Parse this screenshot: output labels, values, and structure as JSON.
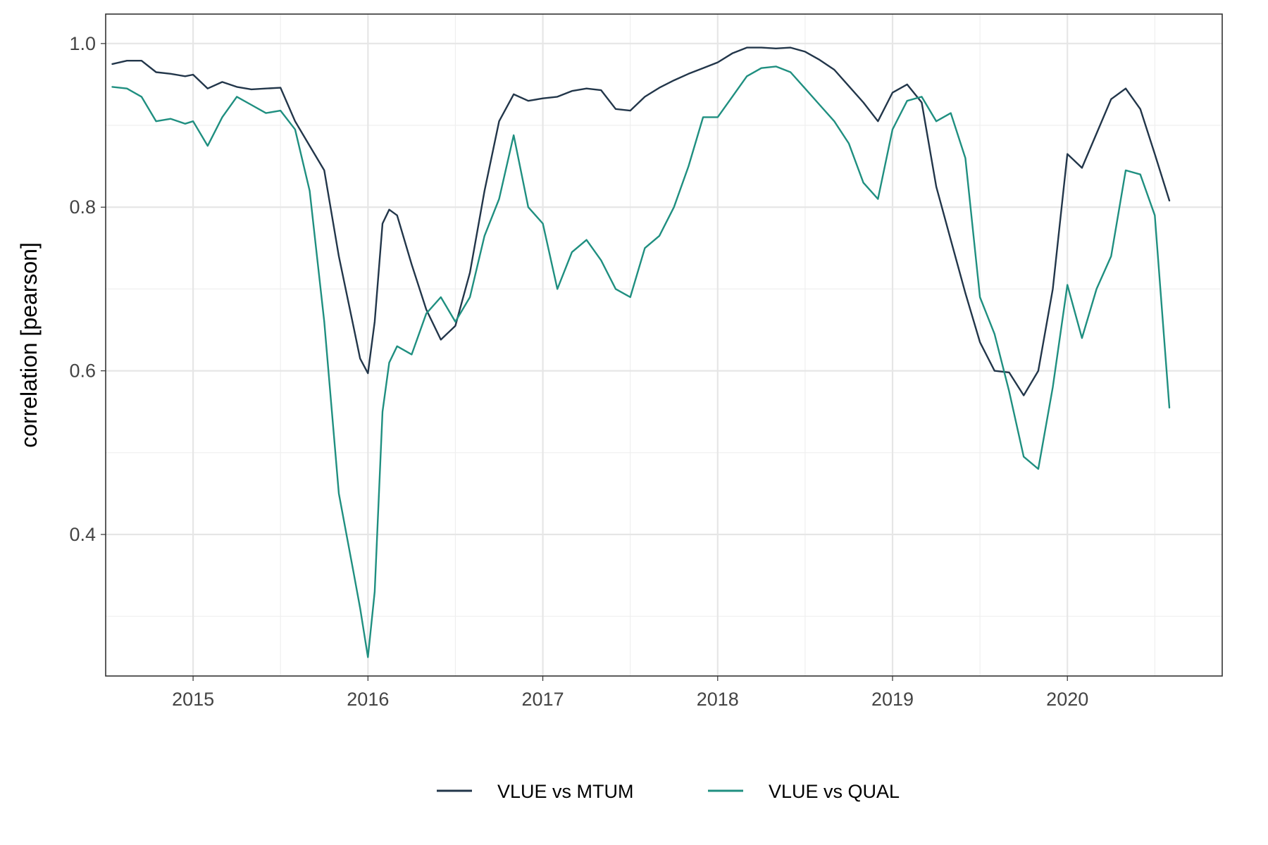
{
  "chart_data": {
    "type": "line",
    "title": "",
    "xlabel": "",
    "ylabel": "correlation [pearson]",
    "x_ticks": [
      "2015",
      "2016",
      "2017",
      "2018",
      "2019",
      "2020"
    ],
    "y_ticks": [
      "0.4",
      "0.6",
      "0.8",
      "1.0"
    ],
    "xlim": [
      "2014-07-01",
      "2020-11-20"
    ],
    "ylim": [
      0.227,
      1.036
    ],
    "grid": true,
    "legend_position": "bottom",
    "series": [
      {
        "name": "VLUE vs MTUM",
        "color": "#22364a",
        "points": [
          [
            "2014-07-15",
            0.975
          ],
          [
            "2014-08-15",
            0.979
          ],
          [
            "2014-09-15",
            0.979
          ],
          [
            "2014-10-15",
            0.965
          ],
          [
            "2014-11-15",
            0.963
          ],
          [
            "2014-12-15",
            0.96
          ],
          [
            "2015-01-01",
            0.962
          ],
          [
            "2015-02-01",
            0.945
          ],
          [
            "2015-03-01",
            0.953
          ],
          [
            "2015-04-01",
            0.947
          ],
          [
            "2015-05-01",
            0.944
          ],
          [
            "2015-06-01",
            0.945
          ],
          [
            "2015-07-01",
            0.946
          ],
          [
            "2015-08-01",
            0.905
          ],
          [
            "2015-09-01",
            0.875
          ],
          [
            "2015-10-01",
            0.845
          ],
          [
            "2015-11-01",
            0.74
          ],
          [
            "2015-12-01",
            0.655
          ],
          [
            "2015-12-15",
            0.615
          ],
          [
            "2016-01-01",
            0.597
          ],
          [
            "2016-01-15",
            0.66
          ],
          [
            "2016-02-01",
            0.78
          ],
          [
            "2016-02-15",
            0.797
          ],
          [
            "2016-03-01",
            0.79
          ],
          [
            "2016-04-01",
            0.73
          ],
          [
            "2016-05-01",
            0.675
          ],
          [
            "2016-06-01",
            0.638
          ],
          [
            "2016-07-01",
            0.655
          ],
          [
            "2016-08-01",
            0.72
          ],
          [
            "2016-09-01",
            0.82
          ],
          [
            "2016-10-01",
            0.905
          ],
          [
            "2016-11-01",
            0.938
          ],
          [
            "2016-12-01",
            0.93
          ],
          [
            "2017-01-01",
            0.933
          ],
          [
            "2017-02-01",
            0.935
          ],
          [
            "2017-03-01",
            0.942
          ],
          [
            "2017-04-01",
            0.945
          ],
          [
            "2017-05-01",
            0.943
          ],
          [
            "2017-06-01",
            0.92
          ],
          [
            "2017-07-01",
            0.918
          ],
          [
            "2017-08-01",
            0.935
          ],
          [
            "2017-09-01",
            0.946
          ],
          [
            "2017-10-01",
            0.955
          ],
          [
            "2017-11-01",
            0.963
          ],
          [
            "2017-12-01",
            0.97
          ],
          [
            "2018-01-01",
            0.977
          ],
          [
            "2018-02-01",
            0.988
          ],
          [
            "2018-03-01",
            0.995
          ],
          [
            "2018-04-01",
            0.995
          ],
          [
            "2018-05-01",
            0.994
          ],
          [
            "2018-06-01",
            0.995
          ],
          [
            "2018-07-01",
            0.99
          ],
          [
            "2018-08-01",
            0.98
          ],
          [
            "2018-09-01",
            0.968
          ],
          [
            "2018-10-01",
            0.948
          ],
          [
            "2018-11-01",
            0.928
          ],
          [
            "2018-12-01",
            0.905
          ],
          [
            "2019-01-01",
            0.94
          ],
          [
            "2019-02-01",
            0.95
          ],
          [
            "2019-03-01",
            0.928
          ],
          [
            "2019-04-01",
            0.825
          ],
          [
            "2019-05-01",
            0.76
          ],
          [
            "2019-06-01",
            0.695
          ],
          [
            "2019-07-01",
            0.635
          ],
          [
            "2019-08-01",
            0.6
          ],
          [
            "2019-09-01",
            0.598
          ],
          [
            "2019-10-01",
            0.57
          ],
          [
            "2019-11-01",
            0.6
          ],
          [
            "2019-12-01",
            0.7
          ],
          [
            "2020-01-01",
            0.865
          ],
          [
            "2020-02-01",
            0.848
          ],
          [
            "2020-03-01",
            0.89
          ],
          [
            "2020-04-01",
            0.932
          ],
          [
            "2020-05-01",
            0.945
          ],
          [
            "2020-06-01",
            0.92
          ],
          [
            "2020-07-01",
            0.865
          ],
          [
            "2020-08-01",
            0.808
          ]
        ]
      },
      {
        "name": "VLUE vs QUAL",
        "color": "#1f8f80",
        "points": [
          [
            "2014-07-15",
            0.947
          ],
          [
            "2014-08-15",
            0.945
          ],
          [
            "2014-09-15",
            0.935
          ],
          [
            "2014-10-15",
            0.905
          ],
          [
            "2014-11-15",
            0.908
          ],
          [
            "2014-12-15",
            0.902
          ],
          [
            "2015-01-01",
            0.905
          ],
          [
            "2015-02-01",
            0.875
          ],
          [
            "2015-03-01",
            0.91
          ],
          [
            "2015-04-01",
            0.935
          ],
          [
            "2015-05-01",
            0.925
          ],
          [
            "2015-06-01",
            0.915
          ],
          [
            "2015-07-01",
            0.918
          ],
          [
            "2015-08-01",
            0.895
          ],
          [
            "2015-09-01",
            0.82
          ],
          [
            "2015-10-01",
            0.66
          ],
          [
            "2015-11-01",
            0.45
          ],
          [
            "2015-12-01",
            0.355
          ],
          [
            "2015-12-15",
            0.31
          ],
          [
            "2016-01-01",
            0.25
          ],
          [
            "2016-01-15",
            0.33
          ],
          [
            "2016-02-01",
            0.55
          ],
          [
            "2016-02-15",
            0.61
          ],
          [
            "2016-03-01",
            0.63
          ],
          [
            "2016-04-01",
            0.62
          ],
          [
            "2016-05-01",
            0.67
          ],
          [
            "2016-06-01",
            0.69
          ],
          [
            "2016-07-01",
            0.66
          ],
          [
            "2016-08-01",
            0.69
          ],
          [
            "2016-09-01",
            0.765
          ],
          [
            "2016-10-01",
            0.81
          ],
          [
            "2016-11-01",
            0.888
          ],
          [
            "2016-12-01",
            0.8
          ],
          [
            "2017-01-01",
            0.78
          ],
          [
            "2017-02-01",
            0.7
          ],
          [
            "2017-03-01",
            0.745
          ],
          [
            "2017-04-01",
            0.76
          ],
          [
            "2017-05-01",
            0.735
          ],
          [
            "2017-06-01",
            0.7
          ],
          [
            "2017-07-01",
            0.69
          ],
          [
            "2017-08-01",
            0.75
          ],
          [
            "2017-09-01",
            0.765
          ],
          [
            "2017-10-01",
            0.8
          ],
          [
            "2017-11-01",
            0.85
          ],
          [
            "2017-12-01",
            0.91
          ],
          [
            "2018-01-01",
            0.91
          ],
          [
            "2018-02-01",
            0.935
          ],
          [
            "2018-03-01",
            0.96
          ],
          [
            "2018-04-01",
            0.97
          ],
          [
            "2018-05-01",
            0.972
          ],
          [
            "2018-06-01",
            0.965
          ],
          [
            "2018-07-01",
            0.945
          ],
          [
            "2018-08-01",
            0.925
          ],
          [
            "2018-09-01",
            0.905
          ],
          [
            "2018-10-01",
            0.878
          ],
          [
            "2018-11-01",
            0.83
          ],
          [
            "2018-12-01",
            0.81
          ],
          [
            "2019-01-01",
            0.895
          ],
          [
            "2019-02-01",
            0.93
          ],
          [
            "2019-03-01",
            0.935
          ],
          [
            "2019-04-01",
            0.905
          ],
          [
            "2019-05-01",
            0.915
          ],
          [
            "2019-06-01",
            0.86
          ],
          [
            "2019-07-01",
            0.69
          ],
          [
            "2019-08-01",
            0.645
          ],
          [
            "2019-09-01",
            0.575
          ],
          [
            "2019-10-01",
            0.495
          ],
          [
            "2019-11-01",
            0.48
          ],
          [
            "2019-12-01",
            0.58
          ],
          [
            "2020-01-01",
            0.705
          ],
          [
            "2020-02-01",
            0.64
          ],
          [
            "2020-03-01",
            0.7
          ],
          [
            "2020-04-01",
            0.74
          ],
          [
            "2020-05-01",
            0.845
          ],
          [
            "2020-06-01",
            0.84
          ],
          [
            "2020-07-01",
            0.79
          ],
          [
            "2020-08-01",
            0.555
          ]
        ]
      }
    ]
  }
}
